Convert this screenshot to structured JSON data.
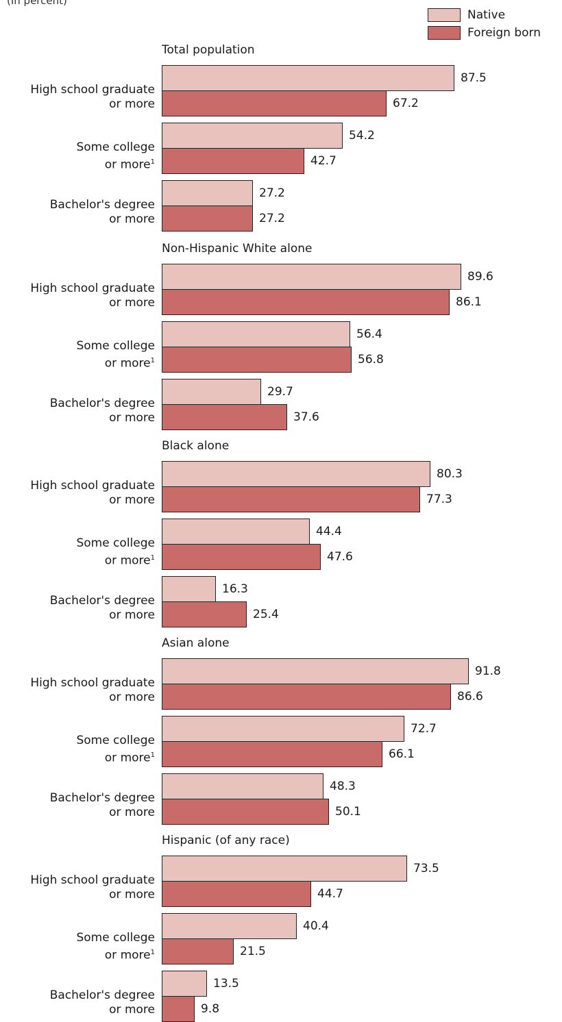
{
  "unit_note": "(In percent)",
  "colors": {
    "native": "#e8c3bd",
    "foreign": "#c86b69"
  },
  "chart_data": {
    "type": "bar",
    "orientation": "horizontal",
    "legend": [
      "Native",
      "Foreign born"
    ],
    "legend_position": "top-right",
    "footnote_marker": "1",
    "groups": [
      {
        "title": "Total population",
        "categories": [
          {
            "line1": "High school graduate",
            "line2": "or more",
            "footnote": false,
            "native": 87.5,
            "foreign": 67.2
          },
          {
            "line1": "Some college",
            "line2": "or more",
            "footnote": true,
            "native": 54.2,
            "foreign": 42.7
          },
          {
            "line1": "Bachelor's degree",
            "line2": "or more",
            "footnote": false,
            "native": 27.2,
            "foreign": 27.2
          }
        ]
      },
      {
        "title": "Non-Hispanic White alone",
        "categories": [
          {
            "line1": "High school graduate",
            "line2": "or more",
            "footnote": false,
            "native": 89.6,
            "foreign": 86.1
          },
          {
            "line1": "Some college",
            "line2": "or more",
            "footnote": true,
            "native": 56.4,
            "foreign": 56.8
          },
          {
            "line1": "Bachelor's degree",
            "line2": "or more",
            "footnote": false,
            "native": 29.7,
            "foreign": 37.6
          }
        ]
      },
      {
        "title": "Black alone",
        "categories": [
          {
            "line1": "High school graduate",
            "line2": "or more",
            "footnote": false,
            "native": 80.3,
            "foreign": 77.3
          },
          {
            "line1": "Some college",
            "line2": "or more",
            "footnote": true,
            "native": 44.4,
            "foreign": 47.6
          },
          {
            "line1": "Bachelor's degree",
            "line2": "or more",
            "footnote": false,
            "native": 16.3,
            "foreign": 25.4
          }
        ]
      },
      {
        "title": "Asian alone",
        "categories": [
          {
            "line1": "High school graduate",
            "line2": "or more",
            "footnote": false,
            "native": 91.8,
            "foreign": 86.6
          },
          {
            "line1": "Some college",
            "line2": "or more",
            "footnote": true,
            "native": 72.7,
            "foreign": 66.1
          },
          {
            "line1": "Bachelor's degree",
            "line2": "or more",
            "footnote": false,
            "native": 48.3,
            "foreign": 50.1
          }
        ]
      },
      {
        "title": "Hispanic (of any race)",
        "categories": [
          {
            "line1": "High school graduate",
            "line2": "or more",
            "footnote": false,
            "native": 73.5,
            "foreign": 44.7
          },
          {
            "line1": "Some college",
            "line2": "or more",
            "footnote": true,
            "native": 40.4,
            "foreign": 21.5
          },
          {
            "line1": "Bachelor's degree",
            "line2": "or more",
            "footnote": false,
            "native": 13.5,
            "foreign": 9.8
          }
        ]
      }
    ]
  }
}
